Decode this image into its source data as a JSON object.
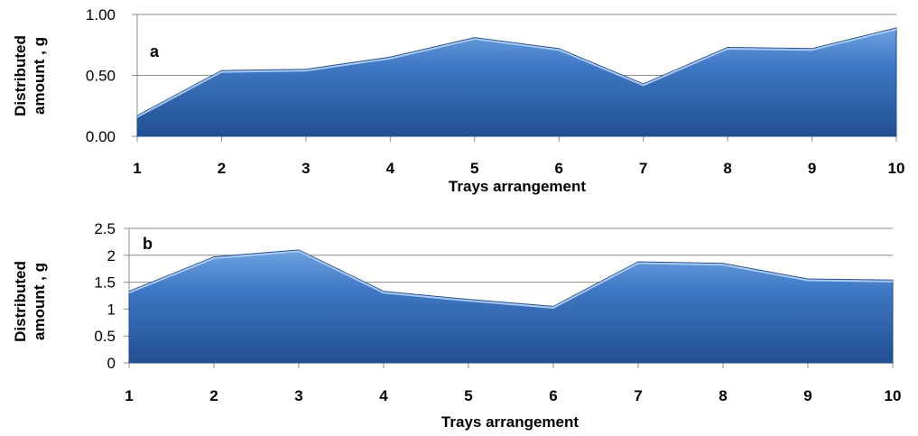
{
  "chart_data": [
    {
      "type": "area",
      "panel_label": "a",
      "categories": [
        "1",
        "2",
        "3",
        "4",
        "5",
        "6",
        "7",
        "8",
        "9",
        "10"
      ],
      "values": [
        0.17,
        0.54,
        0.55,
        0.65,
        0.81,
        0.72,
        0.43,
        0.73,
        0.72,
        0.89
      ],
      "ylim": [
        0,
        1.0
      ],
      "yticks": [
        "0.00",
        "0.50",
        "1.00"
      ],
      "ytick_values": [
        0,
        0.5,
        1.0
      ],
      "xlabel": "Trays arrangement",
      "ylabel_line1": "Distributed",
      "ylabel_line2": "amount , g",
      "grid": true,
      "color": "#3a74c0"
    },
    {
      "type": "area",
      "panel_label": "b",
      "categories": [
        "1",
        "2",
        "3",
        "4",
        "5",
        "6",
        "7",
        "8",
        "9",
        "10"
      ],
      "values": [
        1.33,
        1.97,
        2.1,
        1.33,
        1.18,
        1.05,
        1.88,
        1.85,
        1.56,
        1.54
      ],
      "ylim": [
        0,
        2.5
      ],
      "yticks": [
        "0",
        "0.5",
        "1",
        "1.5",
        "2",
        "2.5"
      ],
      "ytick_values": [
        0,
        0.5,
        1,
        1.5,
        2,
        2.5
      ],
      "xlabel": "Trays arrangement",
      "ylabel_line1": "Distributed",
      "ylabel_line2": "amount , g",
      "grid": true,
      "color": "#3a74c0"
    }
  ]
}
